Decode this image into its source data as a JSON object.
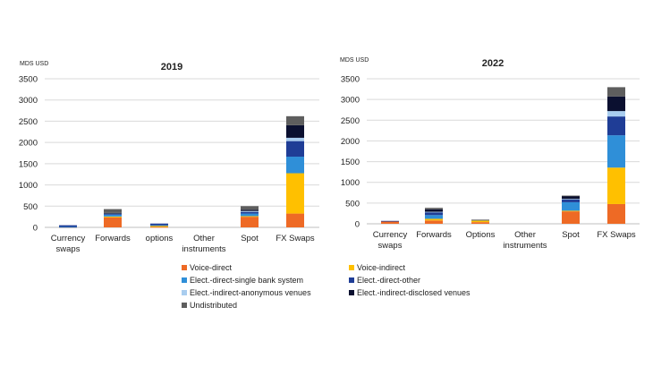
{
  "chart_data": [
    {
      "type": "bar",
      "stacked": true,
      "title": "2019",
      "ylabel": "MDS USD",
      "ylim": [
        0,
        3500
      ],
      "yticks": [
        "0",
        "500",
        "1000",
        "1500",
        "2000",
        "2500",
        "3000",
        "3500"
      ],
      "grid": true,
      "categories": [
        [
          "Currency",
          "swaps"
        ],
        [
          "Forwards"
        ],
        [
          "options"
        ],
        [
          "Other",
          "instruments"
        ],
        [
          "Spot"
        ],
        [
          "FX Swaps"
        ]
      ],
      "series": [
        {
          "name": "Voice-direct",
          "values": [
            5,
            235,
            10,
            0,
            250,
            325
          ]
        },
        {
          "name": "Voice-indirect",
          "values": [
            0,
            20,
            30,
            0,
            15,
            950
          ]
        },
        {
          "name": "Elect.-direct-single bank system",
          "values": [
            5,
            40,
            10,
            0,
            60,
            390
          ]
        },
        {
          "name": "Elect.-direct-other",
          "values": [
            40,
            20,
            40,
            0,
            40,
            367
          ]
        },
        {
          "name": "Elect.-indirect-anonymous venues",
          "values": [
            0,
            15,
            0,
            0,
            20,
            78
          ]
        },
        {
          "name": "Elect.-indirect-disclosed venues",
          "values": [
            0,
            10,
            0,
            0,
            30,
            296
          ]
        },
        {
          "name": "Undistributed",
          "values": [
            0,
            90,
            0,
            0,
            85,
            212
          ]
        }
      ]
    },
    {
      "type": "bar",
      "stacked": true,
      "title": "2022",
      "ylabel": "MDS USD",
      "ylim": [
        0,
        3500
      ],
      "yticks": [
        "0",
        "500",
        "1000",
        "1500",
        "2000",
        "2500",
        "3000",
        "3500"
      ],
      "grid": true,
      "categories": [
        [
          "Currency",
          "swaps"
        ],
        [
          "Forwards"
        ],
        [
          "Options"
        ],
        [
          "Other",
          "instruments"
        ],
        [
          "Spot"
        ],
        [
          "FX Swaps"
        ]
      ],
      "series": [
        {
          "name": "Voice-direct",
          "values": [
            60,
            80,
            40,
            0,
            300,
            476
          ]
        },
        {
          "name": "Voice-indirect",
          "values": [
            0,
            40,
            50,
            0,
            15,
            880
          ]
        },
        {
          "name": "Elect.-direct-single bank system",
          "values": [
            0,
            90,
            5,
            0,
            205,
            780
          ]
        },
        {
          "name": "Elect.-direct-other",
          "values": [
            10,
            70,
            0,
            0,
            70,
            454
          ]
        },
        {
          "name": "Elect.-indirect-anonymous venues",
          "values": [
            0,
            10,
            0,
            0,
            10,
            130
          ]
        },
        {
          "name": "Elect.-indirect-disclosed venues",
          "values": [
            0,
            60,
            0,
            0,
            70,
            354
          ]
        },
        {
          "name": "Undistributed",
          "values": [
            0,
            35,
            5,
            0,
            10,
            223
          ]
        }
      ]
    }
  ],
  "legend": {
    "placement": "bottom",
    "items": [
      {
        "name": "Voice-direct",
        "color": "#ee6a25"
      },
      {
        "name": "Voice-indirect",
        "color": "#ffc000"
      },
      {
        "name": "Elect.-direct-single bank system",
        "color": "#2f8fd8"
      },
      {
        "name": "Elect.-direct-other",
        "color": "#1f3d96"
      },
      {
        "name": "Elect.-indirect-anonymous venues",
        "color": "#a9cdef"
      },
      {
        "name": "Elect.-indirect-disclosed venues",
        "color": "#0b1030"
      },
      {
        "name": "Undistributed",
        "color": "#5e5e5e"
      }
    ]
  }
}
